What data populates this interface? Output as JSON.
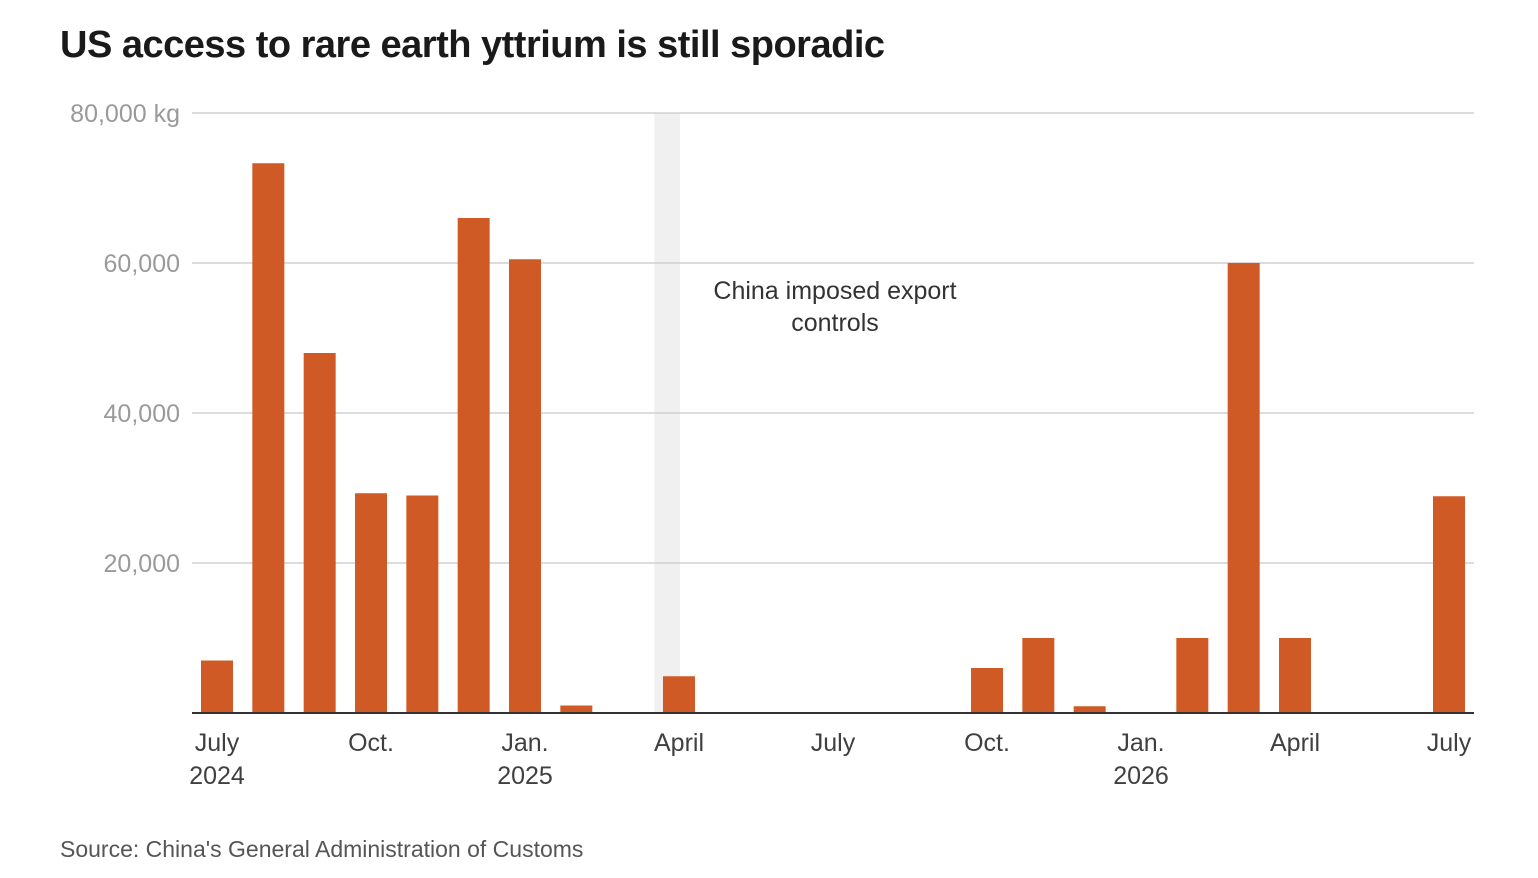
{
  "chart_data": {
    "type": "bar",
    "title": "US access to rare earth yttrium is still sporadic",
    "source": "Source: China's General Administration of Customs",
    "ylabel": "",
    "xlabel": "",
    "ylim": [
      0,
      80000
    ],
    "y_ticks": [
      {
        "value": 0,
        "label": ""
      },
      {
        "value": 20000,
        "label": "20,000"
      },
      {
        "value": 40000,
        "label": "40,000"
      },
      {
        "value": 60000,
        "label": "60,000"
      },
      {
        "value": 80000,
        "label": "80,000 kg"
      }
    ],
    "grid": true,
    "categories": [
      "2024-07",
      "2024-08",
      "2024-09",
      "2024-10",
      "2024-11",
      "2024-12",
      "2025-01",
      "2025-02",
      "2025-03",
      "2025-04",
      "2025-05",
      "2025-06",
      "2025-07",
      "2025-08",
      "2025-09",
      "2025-10",
      "2025-11",
      "2025-12",
      "2026-01",
      "2026-02",
      "2026-03",
      "2026-04",
      "2026-05",
      "2026-06",
      "2026-07"
    ],
    "values": [
      7000,
      73300,
      48000,
      29300,
      29000,
      66000,
      60500,
      1000,
      0,
      4900,
      0,
      0,
      0,
      0,
      0,
      6000,
      10000,
      900,
      0,
      10000,
      60000,
      10000,
      0,
      0,
      28900
    ],
    "x_ticks": [
      {
        "index": 0,
        "label": "July",
        "sublabel": "2024"
      },
      {
        "index": 3,
        "label": "Oct.",
        "sublabel": ""
      },
      {
        "index": 6,
        "label": "Jan.",
        "sublabel": "2025"
      },
      {
        "index": 9,
        "label": "April",
        "sublabel": ""
      },
      {
        "index": 12,
        "label": "July",
        "sublabel": ""
      },
      {
        "index": 15,
        "label": "Oct.",
        "sublabel": ""
      },
      {
        "index": 18,
        "label": "Jan.",
        "sublabel": "2026"
      },
      {
        "index": 21,
        "label": "April",
        "sublabel": ""
      },
      {
        "index": 24,
        "label": "July",
        "sublabel": ""
      }
    ],
    "annotation": {
      "at_category": "2025-04",
      "lines": [
        "China imposed export",
        "controls"
      ]
    },
    "colors": {
      "bar": "#cf5a25",
      "grid": "#c8c8c8",
      "axis": "#333333",
      "highlight": "#f0f0f0"
    }
  }
}
